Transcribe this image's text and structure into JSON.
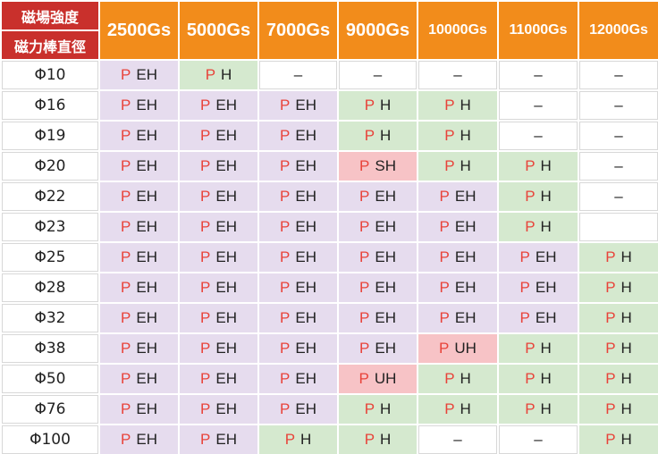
{
  "corner": {
    "top": "磁場強度",
    "bottom": "磁力棒直徑"
  },
  "columns": [
    "2500Gs",
    "5000Gs",
    "7000Gs",
    "9000Gs",
    "10000Gs",
    "11000Gs",
    "12000Gs"
  ],
  "colors": {
    "purple": "#e6dcee",
    "green": "#d5e9cf",
    "pink": "#f7c3c6",
    "header": "#f28c1b",
    "corner": "#c9302c",
    "p_text": "#e8433a"
  },
  "rows": [
    {
      "d": "Φ10",
      "cells": [
        {
          "g": "EH",
          "c": "purple"
        },
        {
          "g": "H",
          "c": "green"
        },
        {
          "g": "–",
          "c": "white"
        },
        {
          "g": "–",
          "c": "white"
        },
        {
          "g": "–",
          "c": "white"
        },
        {
          "g": "–",
          "c": "white"
        },
        {
          "g": "–",
          "c": "white"
        }
      ]
    },
    {
      "d": "Φ16",
      "cells": [
        {
          "g": "EH",
          "c": "purple"
        },
        {
          "g": "EH",
          "c": "purple"
        },
        {
          "g": "EH",
          "c": "purple"
        },
        {
          "g": "H",
          "c": "green"
        },
        {
          "g": "H",
          "c": "green"
        },
        {
          "g": "–",
          "c": "white"
        },
        {
          "g": "–",
          "c": "white"
        }
      ]
    },
    {
      "d": "Φ19",
      "cells": [
        {
          "g": "EH",
          "c": "purple"
        },
        {
          "g": "EH",
          "c": "purple"
        },
        {
          "g": "EH",
          "c": "purple"
        },
        {
          "g": "H",
          "c": "green"
        },
        {
          "g": "H",
          "c": "green"
        },
        {
          "g": "–",
          "c": "white"
        },
        {
          "g": "–",
          "c": "white"
        }
      ]
    },
    {
      "d": "Φ20",
      "cells": [
        {
          "g": "EH",
          "c": "purple"
        },
        {
          "g": "EH",
          "c": "purple"
        },
        {
          "g": "EH",
          "c": "purple"
        },
        {
          "g": "SH",
          "c": "pink"
        },
        {
          "g": "H",
          "c": "green"
        },
        {
          "g": "H",
          "c": "green"
        },
        {
          "g": "–",
          "c": "white"
        }
      ]
    },
    {
      "d": "Φ22",
      "cells": [
        {
          "g": "EH",
          "c": "purple"
        },
        {
          "g": "EH",
          "c": "purple"
        },
        {
          "g": "EH",
          "c": "purple"
        },
        {
          "g": "EH",
          "c": "purple"
        },
        {
          "g": "EH",
          "c": "purple"
        },
        {
          "g": "H",
          "c": "green"
        },
        {
          "g": "–",
          "c": "white"
        }
      ]
    },
    {
      "d": "Φ23",
      "cells": [
        {
          "g": "EH",
          "c": "purple"
        },
        {
          "g": "EH",
          "c": "purple"
        },
        {
          "g": "EH",
          "c": "purple"
        },
        {
          "g": "EH",
          "c": "purple"
        },
        {
          "g": "EH",
          "c": "purple"
        },
        {
          "g": "H",
          "c": "green"
        },
        {
          "g": "",
          "c": "white"
        }
      ]
    },
    {
      "d": "Φ25",
      "cells": [
        {
          "g": "EH",
          "c": "purple"
        },
        {
          "g": "EH",
          "c": "purple"
        },
        {
          "g": "EH",
          "c": "purple"
        },
        {
          "g": "EH",
          "c": "purple"
        },
        {
          "g": "EH",
          "c": "purple"
        },
        {
          "g": "EH",
          "c": "purple"
        },
        {
          "g": "H",
          "c": "green"
        }
      ]
    },
    {
      "d": "Φ28",
      "cells": [
        {
          "g": "EH",
          "c": "purple"
        },
        {
          "g": "EH",
          "c": "purple"
        },
        {
          "g": "EH",
          "c": "purple"
        },
        {
          "g": "EH",
          "c": "purple"
        },
        {
          "g": "EH",
          "c": "purple"
        },
        {
          "g": "EH",
          "c": "purple"
        },
        {
          "g": "H",
          "c": "green"
        }
      ]
    },
    {
      "d": "Φ32",
      "cells": [
        {
          "g": "EH",
          "c": "purple"
        },
        {
          "g": "EH",
          "c": "purple"
        },
        {
          "g": "EH",
          "c": "purple"
        },
        {
          "g": "EH",
          "c": "purple"
        },
        {
          "g": "EH",
          "c": "purple"
        },
        {
          "g": "EH",
          "c": "purple"
        },
        {
          "g": "H",
          "c": "green"
        }
      ]
    },
    {
      "d": "Φ38",
      "cells": [
        {
          "g": "EH",
          "c": "purple"
        },
        {
          "g": "EH",
          "c": "purple"
        },
        {
          "g": "EH",
          "c": "purple"
        },
        {
          "g": "EH",
          "c": "purple"
        },
        {
          "g": "UH",
          "c": "pink"
        },
        {
          "g": "H",
          "c": "green"
        },
        {
          "g": "H",
          "c": "green"
        }
      ]
    },
    {
      "d": "Φ50",
      "cells": [
        {
          "g": "EH",
          "c": "purple"
        },
        {
          "g": "EH",
          "c": "purple"
        },
        {
          "g": "EH",
          "c": "purple"
        },
        {
          "g": "UH",
          "c": "pink"
        },
        {
          "g": "H",
          "c": "green"
        },
        {
          "g": "H",
          "c": "green"
        },
        {
          "g": "H",
          "c": "green"
        }
      ]
    },
    {
      "d": "Φ76",
      "cells": [
        {
          "g": "EH",
          "c": "purple"
        },
        {
          "g": "EH",
          "c": "purple"
        },
        {
          "g": "EH",
          "c": "purple"
        },
        {
          "g": "H",
          "c": "green"
        },
        {
          "g": "H",
          "c": "green"
        },
        {
          "g": "H",
          "c": "green"
        },
        {
          "g": "H",
          "c": "green"
        }
      ]
    },
    {
      "d": "Φ100",
      "cells": [
        {
          "g": "EH",
          "c": "purple"
        },
        {
          "g": "EH",
          "c": "purple"
        },
        {
          "g": "H",
          "c": "green"
        },
        {
          "g": "H",
          "c": "green"
        },
        {
          "g": "–",
          "c": "white"
        },
        {
          "g": "–",
          "c": "white"
        },
        {
          "g": "H",
          "c": "green"
        }
      ]
    }
  ],
  "p_label": "P"
}
